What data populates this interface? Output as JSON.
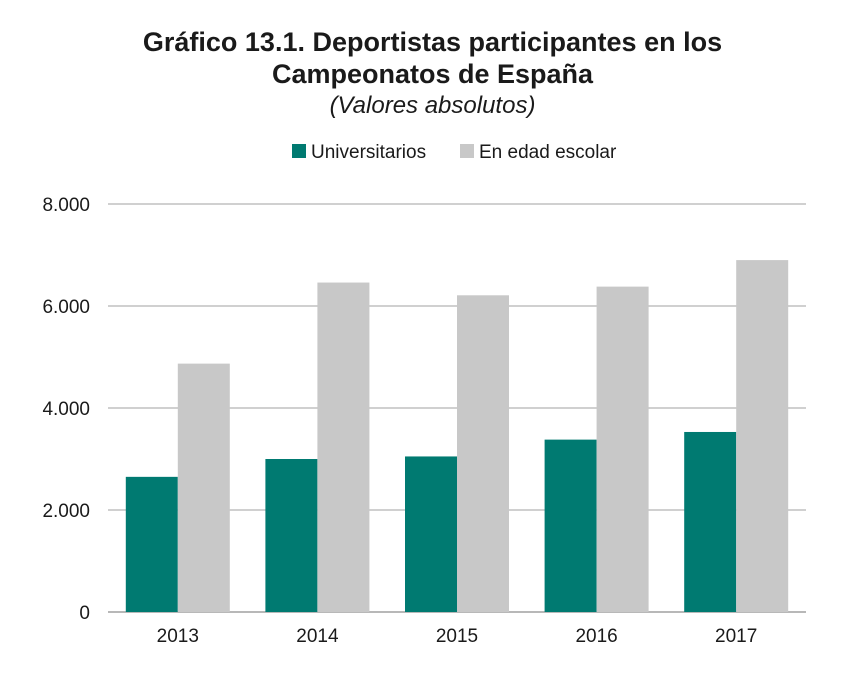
{
  "header": {
    "title_line1": "Gráfico 13.1. Deportistas participantes en los",
    "title_line2": "Campeonatos de España",
    "subtitle": "(Valores absolutos)"
  },
  "colors": {
    "universitarios": "#007a71",
    "escolar": "#c8c8c8",
    "grid": "#b5b5b5",
    "axis": "#a0a0a0"
  },
  "chart_data": {
    "type": "bar",
    "title": "Gráfico 13.1. Deportistas participantes en los Campeonatos de España",
    "subtitle": "(Valores absolutos)",
    "categories": [
      "2013",
      "2014",
      "2015",
      "2016",
      "2017"
    ],
    "series": [
      {
        "name": "Universitarios",
        "values": [
          2650,
          3000,
          3050,
          3380,
          3530
        ]
      },
      {
        "name": "En edad escolar",
        "values": [
          4870,
          6460,
          6210,
          6380,
          6900
        ]
      }
    ],
    "ylim": [
      0,
      8000
    ],
    "yticks": [
      0,
      2000,
      4000,
      6000,
      8000
    ],
    "ytick_labels": [
      "0",
      "2.000",
      "4.000",
      "6.000",
      "8.000"
    ],
    "xlabel": "",
    "ylabel": "",
    "grid": true,
    "legend_position": "top-center"
  }
}
